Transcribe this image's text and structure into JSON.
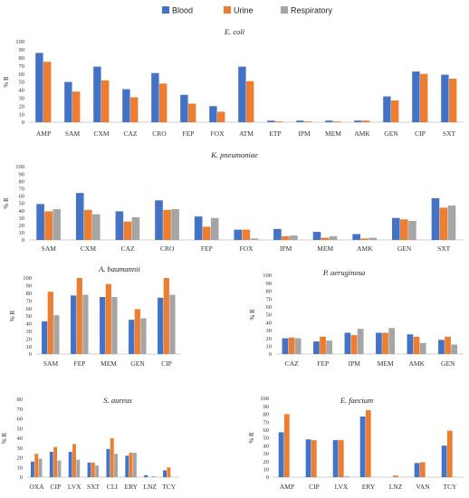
{
  "legend": {
    "items": [
      {
        "label": "Blood",
        "color": "#4472C4"
      },
      {
        "label": "Urine",
        "color": "#ED7D31"
      },
      {
        "label": "Respiratory",
        "color": "#A5A5A5"
      }
    ]
  },
  "chart_data": [
    {
      "type": "bar",
      "title": "E. coli",
      "ylabel": "% R",
      "ylim": [
        0,
        100
      ],
      "yticks": [
        0,
        10,
        20,
        30,
        40,
        50,
        60,
        70,
        80,
        90,
        100
      ],
      "categories": [
        "AMP",
        "SAM",
        "CXM",
        "CAZ",
        "CRO",
        "FEP",
        "FOX",
        "ATM",
        "ETP",
        "IPM",
        "MEM",
        "AMK",
        "GEN",
        "CIP",
        "SXT"
      ],
      "series": [
        {
          "name": "Blood",
          "values": [
            86,
            50,
            69,
            41,
            61,
            34,
            20,
            69,
            2,
            2,
            2,
            2,
            32,
            63,
            59
          ]
        },
        {
          "name": "Urine",
          "values": [
            75,
            38,
            52,
            31,
            48,
            23,
            13,
            51,
            1,
            1,
            1,
            2,
            27,
            60,
            54
          ]
        }
      ]
    },
    {
      "type": "bar",
      "title": "K. pneumoniae",
      "ylabel": "% R",
      "ylim": [
        0,
        100
      ],
      "yticks": [
        0,
        10,
        20,
        30,
        40,
        50,
        60,
        70,
        80,
        90,
        100
      ],
      "categories": [
        "SAM",
        "CXM",
        "CAZ",
        "CRO",
        "FEP",
        "FOX",
        "IPM",
        "MEM",
        "AMK",
        "GEN",
        "SXT"
      ],
      "series": [
        {
          "name": "Blood",
          "values": [
            49,
            64,
            39,
            54,
            32,
            14,
            15,
            11,
            8,
            30,
            57
          ]
        },
        {
          "name": "Urine",
          "values": [
            39,
            41,
            25,
            41,
            18,
            14,
            5,
            3,
            2,
            28,
            44
          ]
        },
        {
          "name": "Respiratory",
          "values": [
            42,
            35,
            31,
            42,
            30,
            2,
            6,
            5,
            3,
            26,
            47
          ]
        }
      ]
    },
    {
      "type": "bar",
      "title": "A. baumannii",
      "ylabel": "% R",
      "ylim": [
        0,
        100
      ],
      "yticks": [
        0,
        10,
        20,
        30,
        40,
        50,
        60,
        70,
        80,
        90,
        100
      ],
      "categories": [
        "SAM",
        "FEP",
        "MEM",
        "GEN",
        "CIP"
      ],
      "series": [
        {
          "name": "Blood",
          "values": [
            43,
            77,
            75,
            45,
            74
          ]
        },
        {
          "name": "Urine",
          "values": [
            82,
            100,
            92,
            59,
            100
          ]
        },
        {
          "name": "Respiratory",
          "values": [
            51,
            78,
            75,
            47,
            78
          ]
        }
      ]
    },
    {
      "type": "bar",
      "title": "P. aeruginosa",
      "ylabel": "% R",
      "ylim": [
        0,
        100
      ],
      "yticks": [
        0,
        10,
        20,
        30,
        40,
        50,
        60,
        70,
        80,
        90,
        100
      ],
      "categories": [
        "CAZ",
        "FEP",
        "IPM",
        "MEM",
        "AMK",
        "GEN"
      ],
      "series": [
        {
          "name": "Blood",
          "values": [
            20,
            16,
            27,
            27,
            25,
            18
          ]
        },
        {
          "name": "Urine",
          "values": [
            21,
            22,
            24,
            27,
            22,
            22
          ]
        },
        {
          "name": "Respiratory",
          "values": [
            20,
            17,
            32,
            33,
            14,
            12
          ]
        }
      ]
    },
    {
      "type": "bar",
      "title": "S. aureus",
      "ylabel": "% R",
      "ylim": [
        0,
        80
      ],
      "yticks": [
        0,
        10,
        20,
        30,
        40,
        50,
        60,
        70,
        80
      ],
      "categories": [
        "OXA",
        "CIP",
        "LVX",
        "SXT",
        "CLI",
        "ERY",
        "LNZ",
        "TCY"
      ],
      "series": [
        {
          "name": "Blood",
          "values": [
            16,
            26,
            26,
            15,
            29,
            22,
            2,
            7
          ]
        },
        {
          "name": "Urine",
          "values": [
            24,
            31,
            34,
            15,
            40,
            25,
            0,
            10
          ]
        },
        {
          "name": "Respiratory",
          "values": [
            19,
            17,
            18,
            12,
            24,
            25,
            1,
            0
          ]
        }
      ]
    },
    {
      "type": "bar",
      "title": "E. faecium",
      "ylabel": "% R",
      "ylim": [
        0,
        100
      ],
      "yticks": [
        0,
        10,
        20,
        30,
        40,
        50,
        60,
        70,
        80,
        90,
        100
      ],
      "categories": [
        "AMP",
        "CIP",
        "LVX",
        "ERY",
        "LNZ",
        "VAN",
        "TCY"
      ],
      "series": [
        {
          "name": "Blood",
          "values": [
            57,
            48,
            47,
            77,
            0,
            18,
            40
          ]
        },
        {
          "name": "Urine",
          "values": [
            80,
            47,
            47,
            85,
            2,
            19,
            59
          ]
        },
        {
          "name": "Respiratory",
          "values": [
            0,
            0,
            1,
            0,
            0,
            0,
            0
          ]
        }
      ]
    }
  ]
}
